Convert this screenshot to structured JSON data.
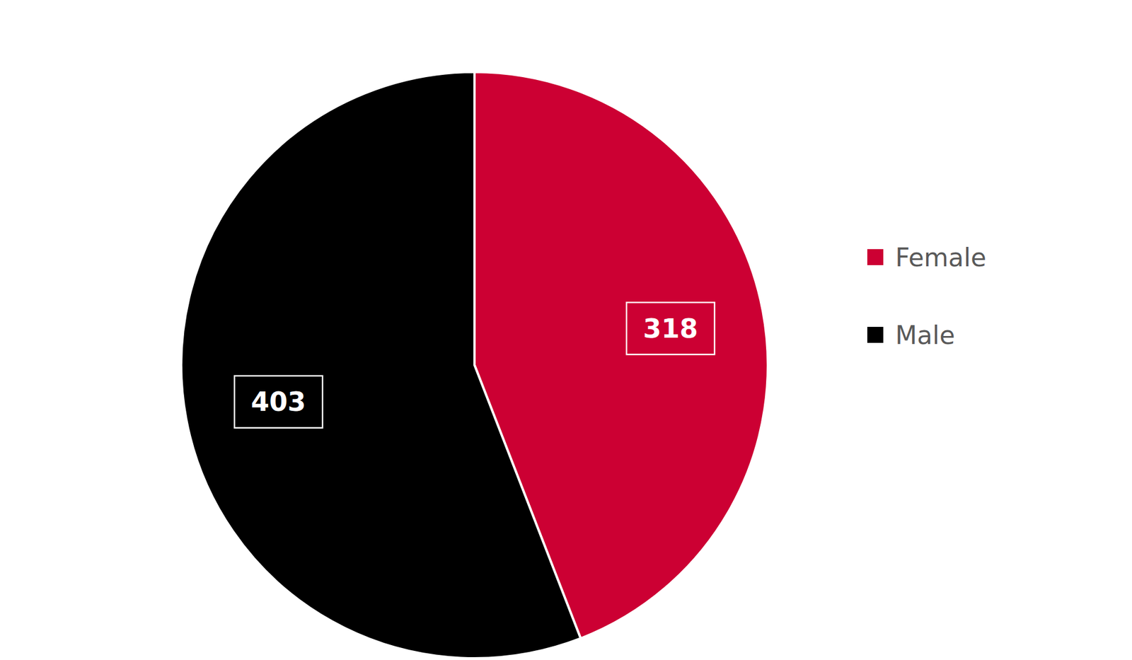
{
  "chart_data": {
    "type": "pie",
    "categories": [
      "Female",
      "Male"
    ],
    "values": [
      318,
      403
    ],
    "colors": [
      "#cc0033",
      "#000000"
    ],
    "data_labels": true,
    "legend": "right"
  }
}
